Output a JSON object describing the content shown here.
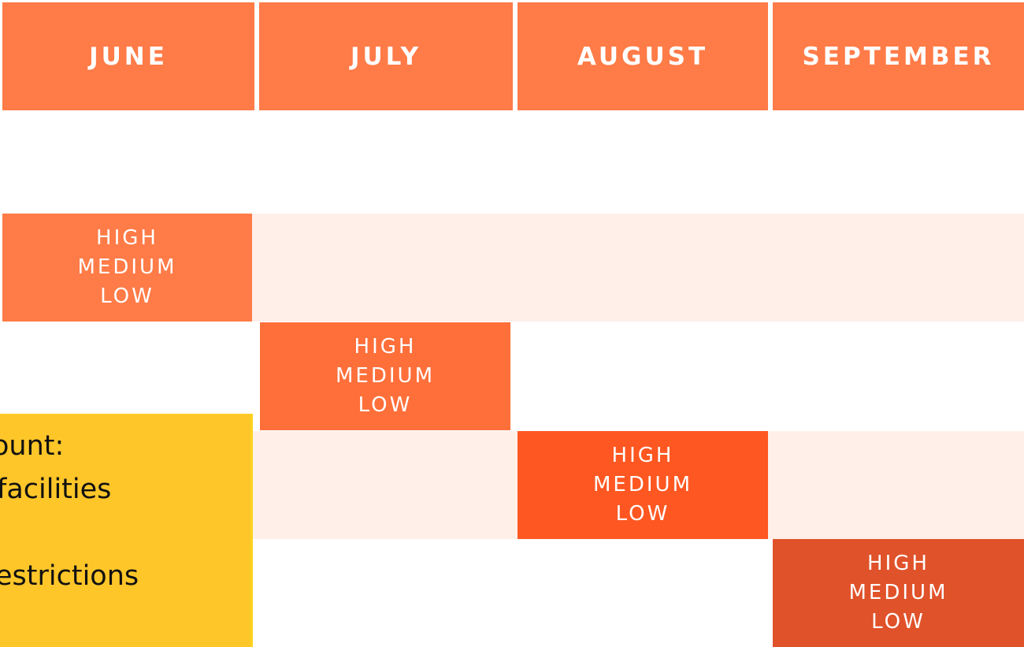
{
  "header": {
    "months": [
      "JUNE",
      "JULY",
      "AUGUST",
      "SEPTEMBER"
    ]
  },
  "cells": [
    {
      "lines": [
        "HIGH",
        "MEDIUM",
        "LOW"
      ]
    },
    {
      "lines": [
        "HIGH",
        "MEDIUM",
        "LOW"
      ]
    },
    {
      "lines": [
        "HIGH",
        "MEDIUM",
        "LOW"
      ]
    },
    {
      "lines": [
        "HIGH",
        "MEDIUM",
        "LOW"
      ]
    }
  ],
  "legend": {
    "lines": [
      "ount:",
      "facilities",
      "estrictions"
    ]
  }
}
